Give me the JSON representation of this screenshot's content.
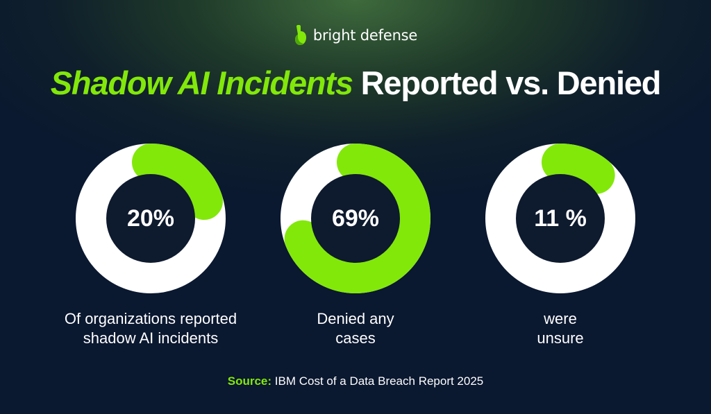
{
  "brand": {
    "name": "bright defense",
    "accent_color": "#82e80a"
  },
  "title": {
    "highlight": "Shadow AI Incidents",
    "rest": "Reported vs. Denied"
  },
  "chart_data": {
    "type": "pie",
    "variant": "donut",
    "title": "Shadow AI Incidents Reported vs. Denied",
    "items": [
      {
        "value": 20,
        "label": "20%",
        "caption": "Of organizations reported\nshadow AI incidents"
      },
      {
        "value": 69,
        "label": "69%",
        "caption": "Denied any\ncases"
      },
      {
        "value": 11,
        "label": "11 %",
        "caption": "were\nunsure"
      }
    ],
    "colors": {
      "highlight": "#82e80a",
      "remainder": "#ffffff",
      "center": "#0e1a2e"
    }
  },
  "source": {
    "label": "Source:",
    "text": "IBM Cost of a Data Breach Report 2025"
  }
}
